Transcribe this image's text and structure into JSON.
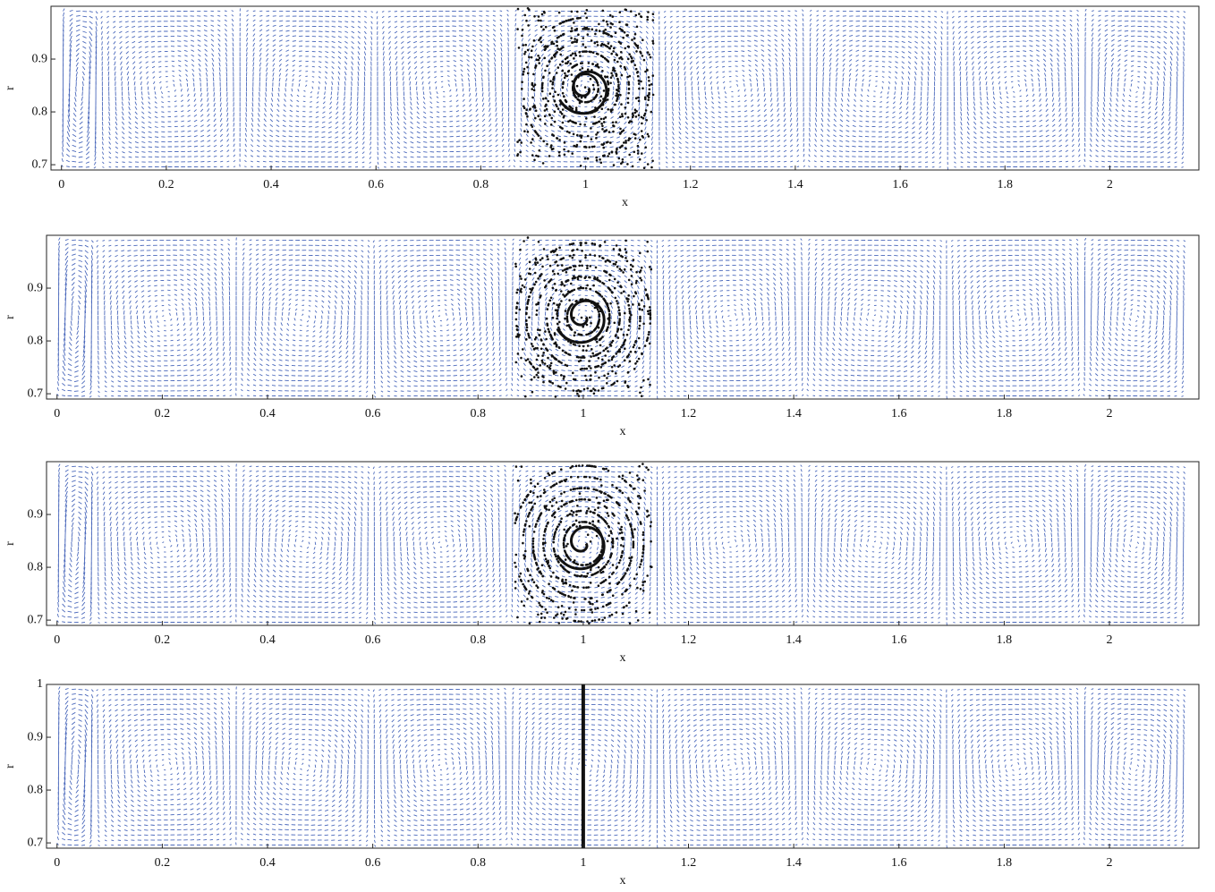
{
  "chart_data": [
    {
      "type": "quiver",
      "xlabel": "x",
      "ylabel": "r",
      "color": "#4a68bb",
      "xlim": [
        -0.02,
        2.17
      ],
      "ylim": [
        0.69,
        1.0
      ],
      "xticks": [
        0,
        0.2,
        0.4,
        0.6,
        0.8,
        1,
        1.2,
        1.4,
        1.6,
        1.8,
        2
      ],
      "yticks": [
        0.7,
        0.8,
        0.9
      ]
    },
    {
      "type": "quiver",
      "xlabel": "x",
      "ylabel": "r",
      "color": "#4a68bb",
      "xlim": [
        -0.02,
        2.17
      ],
      "ylim": [
        0.69,
        1.0
      ],
      "xticks": [
        0,
        0.2,
        0.4,
        0.6,
        0.8,
        1,
        1.2,
        1.4,
        1.6,
        1.8,
        2
      ],
      "yticks": [
        0.7,
        0.8,
        0.9
      ]
    },
    {
      "type": "quiver",
      "xlabel": "x",
      "ylabel": "r",
      "color": "#4a68bb",
      "xlim": [
        -0.02,
        2.17
      ],
      "ylim": [
        0.69,
        1.0
      ],
      "xticks": [
        0,
        0.2,
        0.4,
        0.6,
        0.8,
        1,
        1.2,
        1.4,
        1.6,
        1.8,
        2
      ],
      "yticks": [
        0.7,
        0.8,
        0.9
      ]
    },
    {
      "type": "quiver",
      "xlabel": "x",
      "ylabel": "r",
      "color": "#4a68bb",
      "xlim": [
        -0.02,
        2.17
      ],
      "ylim": [
        0.69,
        1.0
      ],
      "xticks": [
        0,
        0.2,
        0.4,
        0.6,
        0.8,
        1,
        1.2,
        1.4,
        1.6,
        1.8,
        2
      ],
      "yticks": [
        0.7,
        0.8,
        0.9,
        1
      ]
    }
  ]
}
